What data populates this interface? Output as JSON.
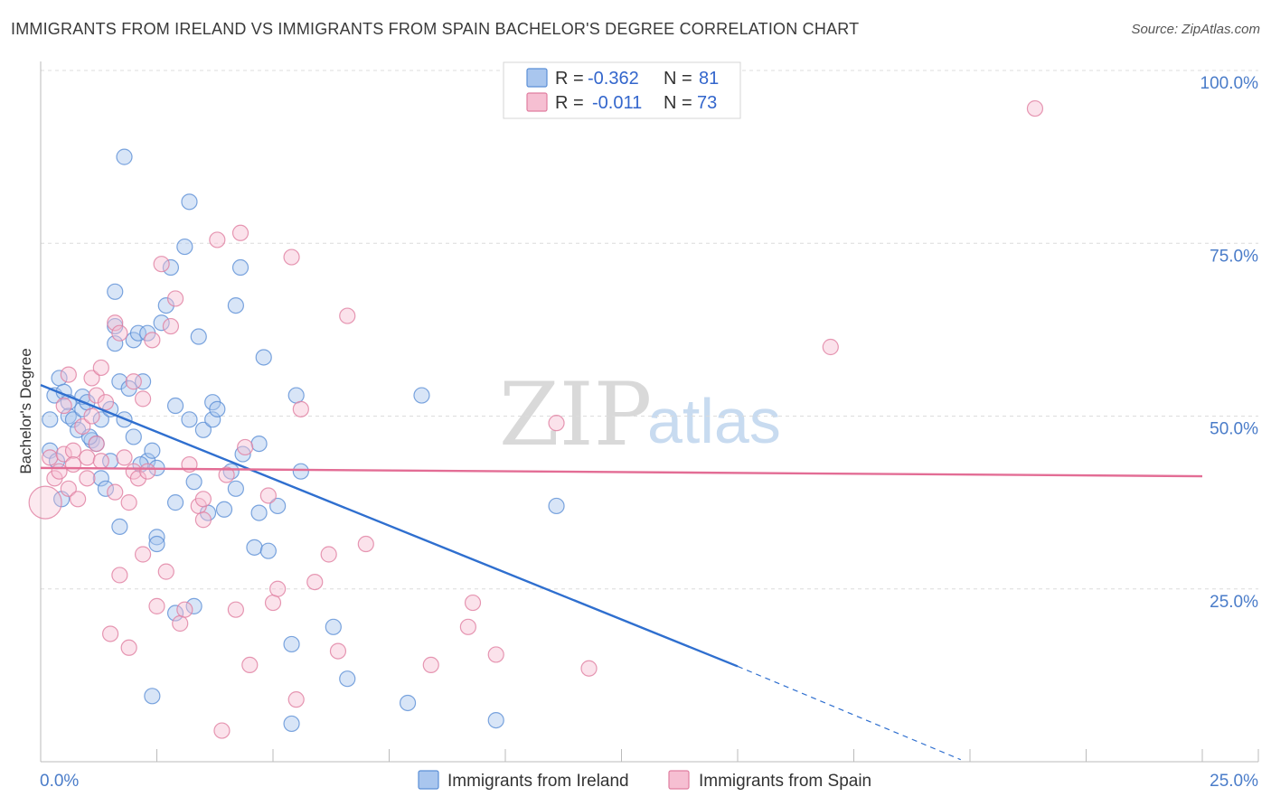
{
  "header": {
    "title": "IMMIGRANTS FROM IRELAND VS IMMIGRANTS FROM SPAIN BACHELOR'S DEGREE CORRELATION CHART",
    "source": "Source: ZipAtlas.com"
  },
  "watermark": {
    "zip": "ZIP",
    "atlas": "atlas"
  },
  "colors": {
    "ireland_fill": "#a9c6ee",
    "ireland_stroke": "#5b8fd6",
    "ireland_line": "#2f6fcf",
    "spain_fill": "#f6bfd2",
    "spain_stroke": "#e07ea0",
    "spain_line": "#e36d95",
    "tick_text": "#4a7cc9",
    "grid": "#dcdcdc"
  },
  "chart_data": {
    "type": "scatter",
    "title": "IMMIGRANTS FROM IRELAND VS IMMIGRANTS FROM SPAIN BACHELOR'S DEGREE CORRELATION CHART",
    "xlabel": "",
    "ylabel": "Bachelor's Degree",
    "xlim": [
      0,
      25
    ],
    "ylim": [
      0,
      100
    ],
    "x_tick_labels": [
      "0.0%",
      "25.0%"
    ],
    "y_tick_values": [
      25,
      50,
      75,
      100
    ],
    "y_tick_labels": [
      "25.0%",
      "50.0%",
      "75.0%",
      "100.0%"
    ],
    "grid": true,
    "legend": {
      "position": "top-center",
      "entries": [
        {
          "series": "ireland",
          "r_label": "R =",
          "r_value": "-0.362",
          "n_label": "N =",
          "n_value": "81"
        },
        {
          "series": "spain",
          "r_label": "R =",
          "r_value": "-0.011",
          "n_label": "N =",
          "n_value": "73"
        }
      ]
    },
    "bottom_legend": [
      "Immigrants from Ireland",
      "Immigrants from Spain"
    ],
    "series": [
      {
        "name": "Immigrants from Ireland",
        "key": "ireland",
        "trend": {
          "x_start": 0,
          "y_start": 54.5,
          "x_solid_end": 15,
          "y_solid_end": 13.8,
          "x_dash_end": 19.8,
          "y_dash_end": 0.3
        },
        "points": [
          [
            0.2,
            45
          ],
          [
            0.2,
            49.5
          ],
          [
            0.3,
            53
          ],
          [
            0.4,
            55.5
          ],
          [
            0.5,
            53.5
          ],
          [
            0.6,
            52
          ],
          [
            0.6,
            50
          ],
          [
            0.7,
            49.5
          ],
          [
            0.8,
            48
          ],
          [
            0.9,
            51
          ],
          [
            0.9,
            52.8
          ],
          [
            1.0,
            52
          ],
          [
            1.1,
            46.5
          ],
          [
            1.2,
            46
          ],
          [
            1.3,
            49.5
          ],
          [
            1.3,
            41
          ],
          [
            1.4,
            39.5
          ],
          [
            1.5,
            51
          ],
          [
            1.5,
            43.5
          ],
          [
            1.6,
            60.5
          ],
          [
            1.6,
            63
          ],
          [
            1.6,
            68
          ],
          [
            1.7,
            34
          ],
          [
            1.7,
            55
          ],
          [
            1.8,
            49.5
          ],
          [
            1.8,
            87.5
          ],
          [
            1.9,
            54
          ],
          [
            2.0,
            47
          ],
          [
            2.0,
            61
          ],
          [
            2.1,
            62
          ],
          [
            2.2,
            55
          ],
          [
            2.3,
            62
          ],
          [
            2.3,
            43.5
          ],
          [
            2.4,
            9.5
          ],
          [
            2.4,
            45
          ],
          [
            2.5,
            32.5
          ],
          [
            2.5,
            31.5
          ],
          [
            2.5,
            42.5
          ],
          [
            2.6,
            63.5
          ],
          [
            2.7,
            66
          ],
          [
            2.8,
            71.5
          ],
          [
            2.9,
            51.5
          ],
          [
            2.9,
            37.5
          ],
          [
            2.9,
            21.5
          ],
          [
            3.1,
            74.5
          ],
          [
            3.2,
            49.5
          ],
          [
            3.2,
            81
          ],
          [
            3.3,
            22.5
          ],
          [
            3.3,
            40.5
          ],
          [
            3.4,
            61.5
          ],
          [
            3.5,
            48
          ],
          [
            3.6,
            36
          ],
          [
            3.7,
            52
          ],
          [
            3.7,
            49.5
          ],
          [
            3.8,
            51
          ],
          [
            4.1,
            42
          ],
          [
            4.2,
            66
          ],
          [
            4.2,
            39.5
          ],
          [
            4.3,
            71.5
          ],
          [
            4.6,
            31
          ],
          [
            4.7,
            36
          ],
          [
            4.7,
            46
          ],
          [
            4.8,
            58.5
          ],
          [
            4.9,
            30.5
          ],
          [
            5.1,
            37
          ],
          [
            5.4,
            17
          ],
          [
            5.4,
            5.5
          ],
          [
            5.5,
            53
          ],
          [
            5.6,
            42
          ],
          [
            6.3,
            19.5
          ],
          [
            6.6,
            12
          ],
          [
            7.9,
            8.5
          ],
          [
            8.2,
            53
          ],
          [
            9.8,
            6
          ],
          [
            11.1,
            37
          ],
          [
            0.35,
            43.5
          ],
          [
            0.45,
            38
          ],
          [
            1.05,
            47
          ],
          [
            2.15,
            43
          ],
          [
            3.95,
            36.5
          ],
          [
            4.35,
            44.5
          ]
        ]
      },
      {
        "name": "Immigrants from Spain",
        "key": "spain",
        "trend": {
          "x_start": 0,
          "y_start": 42.5,
          "x_end": 25,
          "y_end": 41.3
        },
        "points": [
          [
            0.1,
            37.5
          ],
          [
            0.2,
            44
          ],
          [
            0.3,
            41
          ],
          [
            0.4,
            42
          ],
          [
            0.5,
            51.5
          ],
          [
            0.5,
            44.5
          ],
          [
            0.6,
            56
          ],
          [
            0.6,
            39.5
          ],
          [
            0.7,
            45
          ],
          [
            0.7,
            43
          ],
          [
            0.8,
            38
          ],
          [
            0.9,
            48.5
          ],
          [
            1.0,
            44
          ],
          [
            1.0,
            41
          ],
          [
            1.1,
            50
          ],
          [
            1.1,
            55.5
          ],
          [
            1.2,
            53
          ],
          [
            1.2,
            46
          ],
          [
            1.3,
            57
          ],
          [
            1.3,
            43.5
          ],
          [
            1.4,
            52
          ],
          [
            1.5,
            18.5
          ],
          [
            1.6,
            63.5
          ],
          [
            1.6,
            39
          ],
          [
            1.7,
            62
          ],
          [
            1.7,
            27
          ],
          [
            1.8,
            44
          ],
          [
            1.9,
            16.5
          ],
          [
            1.9,
            37.5
          ],
          [
            2.0,
            55
          ],
          [
            2.0,
            42
          ],
          [
            2.1,
            41
          ],
          [
            2.2,
            52.5
          ],
          [
            2.2,
            30
          ],
          [
            2.3,
            42
          ],
          [
            2.4,
            61
          ],
          [
            2.5,
            22.5
          ],
          [
            2.6,
            72
          ],
          [
            2.7,
            27.5
          ],
          [
            2.8,
            63
          ],
          [
            2.9,
            67
          ],
          [
            3.0,
            20
          ],
          [
            3.1,
            22
          ],
          [
            3.2,
            43
          ],
          [
            3.4,
            37
          ],
          [
            3.5,
            35
          ],
          [
            3.5,
            38
          ],
          [
            3.8,
            75.5
          ],
          [
            3.9,
            4.5
          ],
          [
            4.0,
            41.5
          ],
          [
            4.2,
            22
          ],
          [
            4.3,
            76.5
          ],
          [
            4.4,
            45.5
          ],
          [
            4.5,
            14
          ],
          [
            4.9,
            38.5
          ],
          [
            5.0,
            23
          ],
          [
            5.1,
            25
          ],
          [
            5.4,
            73
          ],
          [
            5.5,
            9
          ],
          [
            5.6,
            51
          ],
          [
            5.9,
            26
          ],
          [
            6.2,
            30
          ],
          [
            6.4,
            16
          ],
          [
            6.6,
            64.5
          ],
          [
            7.0,
            31.5
          ],
          [
            8.4,
            14
          ],
          [
            9.2,
            19.5
          ],
          [
            9.3,
            23
          ],
          [
            9.8,
            15.5
          ],
          [
            11.1,
            49
          ],
          [
            11.8,
            13.5
          ],
          [
            17.0,
            60
          ],
          [
            21.4,
            94.5
          ]
        ]
      }
    ]
  }
}
